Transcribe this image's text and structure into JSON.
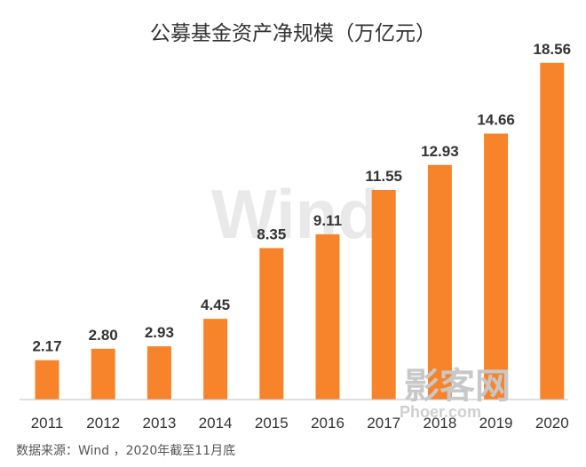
{
  "chart_data": {
    "type": "bar",
    "title": "公募基金资产净规模（万亿元）",
    "categories": [
      "2011",
      "2012",
      "2013",
      "2014",
      "2015",
      "2016",
      "2017",
      "2018",
      "2019",
      "2020"
    ],
    "values": [
      2.17,
      2.8,
      2.93,
      4.45,
      8.35,
      9.11,
      11.55,
      12.93,
      14.66,
      18.56
    ],
    "value_labels": [
      "2.17",
      "2.80",
      "2.93",
      "4.45",
      "8.35",
      "9.11",
      "11.55",
      "12.93",
      "14.66",
      "18.56"
    ],
    "xlabel": "",
    "ylabel": "",
    "ylim": [
      0,
      20
    ],
    "grid": false,
    "bar_color": "#f7842a",
    "axis_color": "#bfbfbf"
  },
  "source_note": "数据来源：Wind ，2020年截至11月底",
  "watermarks": {
    "wind": "Wind",
    "site_cn": "影客网",
    "site_url": "Phoer.com"
  }
}
